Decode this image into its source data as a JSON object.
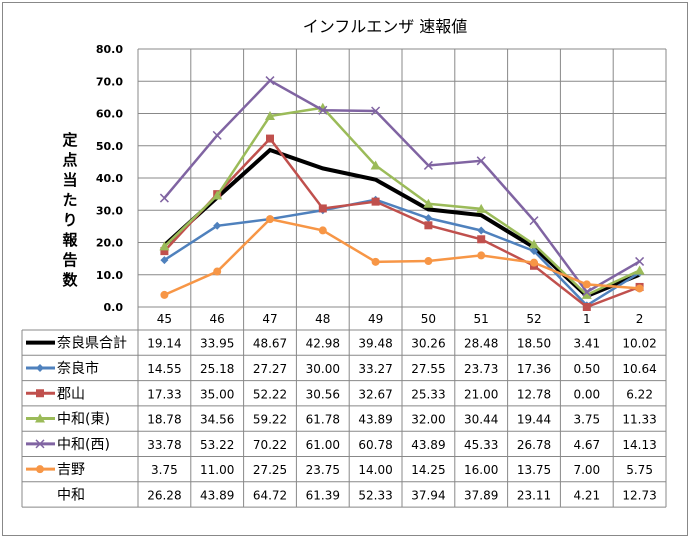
{
  "chart_data": {
    "type": "line",
    "title": "インフルエンザ 速報値",
    "ylabel": "定点当たり報告数",
    "xlabel": "",
    "ylim": [
      0,
      80
    ],
    "yticks": [
      "0.0",
      "10.0",
      "20.0",
      "30.0",
      "40.0",
      "50.0",
      "60.0",
      "70.0",
      "80.0"
    ],
    "grid": true,
    "legend": "table-below",
    "categories": [
      "45",
      "46",
      "47",
      "48",
      "49",
      "50",
      "51",
      "52",
      "1",
      "2"
    ],
    "series": [
      {
        "name": "奈良県合計",
        "color": "#000000",
        "marker": "none",
        "values": [
          19.14,
          33.95,
          48.67,
          42.98,
          39.48,
          30.26,
          28.48,
          18.5,
          3.41,
          10.02
        ]
      },
      {
        "name": "奈良市",
        "color": "#4F81BD",
        "marker": "diamond",
        "values": [
          14.55,
          25.18,
          27.27,
          30.0,
          33.27,
          27.55,
          23.73,
          17.36,
          0.5,
          10.64
        ]
      },
      {
        "name": "郡山",
        "color": "#C0504D",
        "marker": "square",
        "values": [
          17.33,
          35.0,
          52.22,
          30.56,
          32.67,
          25.33,
          21.0,
          12.78,
          0.0,
          6.22
        ]
      },
      {
        "name": "中和(東)",
        "color": "#9BBB59",
        "marker": "triangle",
        "values": [
          18.78,
          34.56,
          59.22,
          61.78,
          43.89,
          32.0,
          30.44,
          19.44,
          3.75,
          11.33
        ]
      },
      {
        "name": "中和(西)",
        "color": "#8064A2",
        "marker": "x",
        "values": [
          33.78,
          53.22,
          70.22,
          61.0,
          60.78,
          43.89,
          45.33,
          26.78,
          4.67,
          14.13
        ]
      },
      {
        "name": "吉野",
        "color": "#F79646",
        "marker": "circle",
        "values": [
          3.75,
          11.0,
          27.25,
          23.75,
          14.0,
          14.25,
          16.0,
          13.75,
          7.0,
          5.75
        ]
      },
      {
        "name": "中和",
        "color": "none",
        "marker": "none",
        "values": [
          26.28,
          43.89,
          64.72,
          61.39,
          52.33,
          37.94,
          37.89,
          23.11,
          4.21,
          12.73
        ]
      }
    ],
    "table_values_formatted": [
      [
        "19.14",
        "33.95",
        "48.67",
        "42.98",
        "39.48",
        "30.26",
        "28.48",
        "18.50",
        "3.41",
        "10.02"
      ],
      [
        "14.55",
        "25.18",
        "27.27",
        "30.00",
        "33.27",
        "27.55",
        "23.73",
        "17.36",
        "0.50",
        "10.64"
      ],
      [
        "17.33",
        "35.00",
        "52.22",
        "30.56",
        "32.67",
        "25.33",
        "21.00",
        "12.78",
        "0.00",
        "6.22"
      ],
      [
        "18.78",
        "34.56",
        "59.22",
        "61.78",
        "43.89",
        "32.00",
        "30.44",
        "19.44",
        "3.75",
        "11.33"
      ],
      [
        "33.78",
        "53.22",
        "70.22",
        "61.00",
        "60.78",
        "43.89",
        "45.33",
        "26.78",
        "4.67",
        "14.13"
      ],
      [
        "3.75",
        "11.00",
        "27.25",
        "23.75",
        "14.00",
        "14.25",
        "16.00",
        "13.75",
        "7.00",
        "5.75"
      ],
      [
        "26.28",
        "43.89",
        "64.72",
        "61.39",
        "52.33",
        "37.94",
        "37.89",
        "23.11",
        "4.21",
        "12.73"
      ]
    ]
  }
}
